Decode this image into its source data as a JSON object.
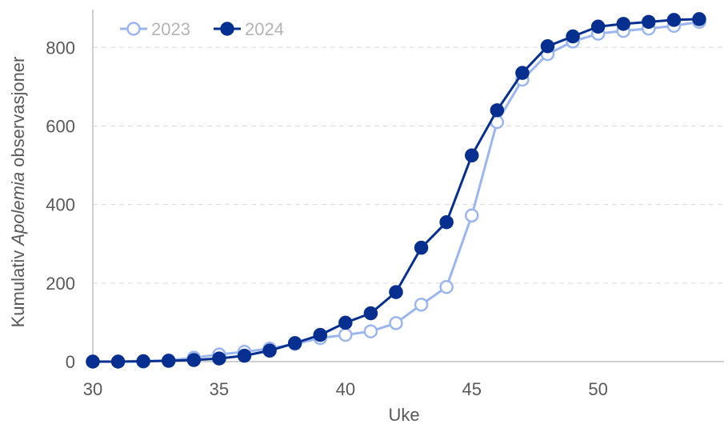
{
  "chart_data": {
    "type": "line",
    "xlabel": "Uke",
    "ylabel_prefix": "Kumulativ ",
    "ylabel_italic": "Apolemia",
    "ylabel_suffix": " observasjoner",
    "xlim": [
      30,
      54
    ],
    "ylim": [
      0,
      880
    ],
    "xticks": [
      30,
      35,
      40,
      45,
      50
    ],
    "yticks": [
      0,
      200,
      400,
      600,
      800
    ],
    "grid": "horizontal dashed",
    "legend_position": "top-left",
    "x": [
      30,
      31,
      32,
      33,
      34,
      35,
      36,
      37,
      38,
      39,
      40,
      41,
      42,
      43,
      44,
      45,
      46,
      47,
      48,
      49,
      50,
      51,
      52,
      53,
      54
    ],
    "series": [
      {
        "name": "2023",
        "color": "#9bb5ee",
        "marker": "hollow-circle",
        "values": [
          0,
          0,
          0,
          3,
          10,
          18,
          25,
          33,
          45,
          60,
          68,
          77,
          98,
          145,
          190,
          372,
          610,
          718,
          783,
          815,
          835,
          842,
          848,
          855,
          865
        ]
      },
      {
        "name": "2024",
        "color": "#062f8f",
        "marker": "filled-circle",
        "values": [
          0,
          0,
          1,
          2,
          4,
          8,
          15,
          28,
          47,
          68,
          99,
          123,
          177,
          290,
          355,
          525,
          640,
          735,
          803,
          828,
          853,
          860,
          865,
          870,
          872
        ]
      }
    ]
  }
}
